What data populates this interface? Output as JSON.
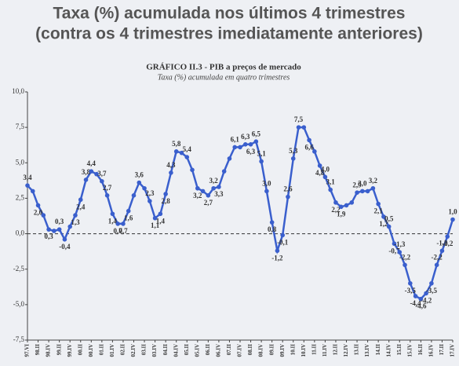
{
  "heading": {
    "line1": "Taxa (%) acumulada nos últimos 4 trimestres",
    "line2": "(contra os 4 trimestres imediatamente anteriores)"
  },
  "chart_data": {
    "type": "line",
    "title": "GRÁFICO II.3 - PIB a preços de mercado",
    "subtitle": "Taxa (%) acumulada em quatro trimestres",
    "color": "#3a5fcd",
    "categories": [
      "97.VI",
      null,
      "98.II",
      null,
      "98.IV",
      null,
      "99.II",
      null,
      "99.IV",
      null,
      "00.II",
      null,
      "00.IV",
      null,
      "01.II",
      null,
      "01.IV",
      null,
      "02.II",
      null,
      "02.IV",
      null,
      "03.II",
      null,
      "03.IV",
      null,
      "04.II",
      null,
      "04.IV",
      null,
      "05.II",
      null,
      "05.IV",
      null,
      "06.II",
      null,
      "06.IV",
      null,
      "07.II",
      null,
      "07.IV",
      null,
      "08.II",
      null,
      "08.IV",
      null,
      "09.II",
      null,
      "09.IV",
      null,
      "10.II",
      null,
      "10.IV",
      null,
      "11.II",
      null,
      "11.IV",
      null,
      "12.II",
      null,
      "12.IV",
      null,
      "13.II",
      null,
      "13.IV",
      null,
      "14.II",
      null,
      "14.IV",
      null,
      "15.II",
      null,
      "15.IV",
      null,
      "16.II",
      null,
      "16.IV",
      null,
      "17.II",
      null,
      "17.IV"
    ],
    "values": [
      3.4,
      3.0,
      2.0,
      1.3,
      0.3,
      0.2,
      0.3,
      -0.4,
      0.5,
      1.3,
      2.4,
      3.8,
      4.4,
      4.2,
      3.7,
      2.7,
      1.4,
      0.7,
      0.7,
      1.6,
      2.7,
      3.6,
      3.2,
      2.3,
      1.1,
      1.4,
      2.8,
      4.3,
      5.8,
      5.7,
      5.4,
      4.5,
      3.2,
      3.0,
      2.7,
      3.2,
      3.3,
      4.4,
      5.3,
      6.1,
      6.1,
      6.3,
      6.3,
      6.5,
      5.1,
      3.0,
      0.8,
      -1.2,
      -0.1,
      2.6,
      5.3,
      7.5,
      7.5,
      6.6,
      5.8,
      4.8,
      4.0,
      3.1,
      2.2,
      1.9,
      2.0,
      2.2,
      2.9,
      3.0,
      3.0,
      3.2,
      2.1,
      1.2,
      0.5,
      -0.7,
      -1.3,
      -2.2,
      -3.5,
      -4.4,
      -4.6,
      -4.2,
      -3.5,
      -2.2,
      -1.2,
      -0.2,
      1.0
    ],
    "value_labels": [
      "3,4",
      null,
      "2,0",
      null,
      "0,3",
      null,
      "0,3",
      "-0,4",
      null,
      "1,3",
      "2,4",
      "3,8",
      "4,4",
      null,
      "3,7",
      "2,7",
      "1,4",
      "0,7",
      "0,7",
      "1,6",
      null,
      "3,6",
      null,
      "2,3",
      "1,1",
      "1,4",
      "2,8",
      "4,3",
      "5,8",
      null,
      "5,4",
      null,
      "3,2",
      null,
      "2,7",
      "3,2",
      "3,3",
      null,
      null,
      "6,1",
      null,
      "6,3",
      "6,3",
      "6,5",
      "5,1",
      "3,0",
      "0,8",
      "-1,2",
      "-0,1",
      "2,6",
      "5,3",
      "7,5",
      null,
      "6,6",
      null,
      "4,8",
      "4,0",
      "3,1",
      "2,2",
      "1,9",
      null,
      null,
      "2,9",
      "3,0",
      null,
      "3,2",
      "2,1",
      "1,2",
      "0,5",
      "-0,7",
      "-1,3",
      "-2,2",
      "-3,5",
      "-4,4",
      "-4,6",
      "-4,2",
      "-3,5",
      "-2,2",
      "-1,2",
      "-0,2",
      "1,0"
    ],
    "ylim": [
      -7.5,
      10
    ],
    "yticks": [
      {
        "value": -7.5,
        "label": "-7,5"
      },
      {
        "value": -5,
        "label": "-5,0"
      },
      {
        "value": -2.5,
        "label": "-2,5"
      },
      {
        "value": 0,
        "label": "0,0"
      },
      {
        "value": 2.5,
        "label": "2,5"
      },
      {
        "value": 5,
        "label": "5,0"
      },
      {
        "value": 7.5,
        "label": "7,5"
      },
      {
        "value": 10,
        "label": "10,0"
      }
    ],
    "zero_line": true
  }
}
